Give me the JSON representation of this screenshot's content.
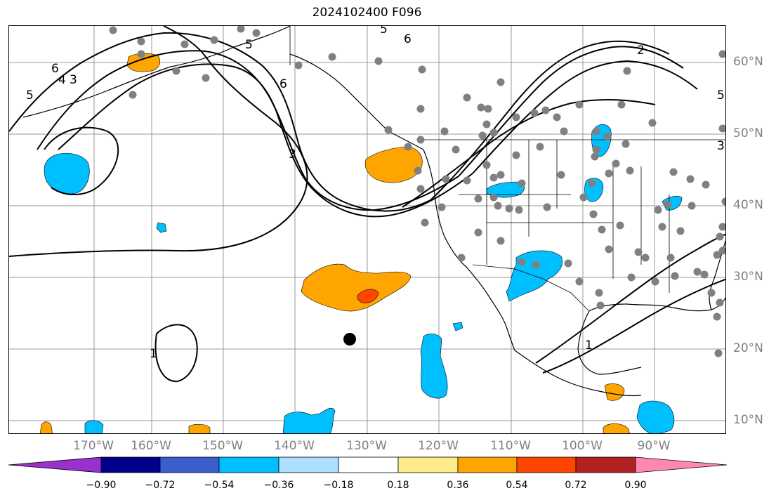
{
  "title": "2024102400 F096",
  "lon_labels": [
    "170°W",
    "160°W",
    "150°W",
    "140°W",
    "130°W",
    "120°W",
    "110°W",
    "100°W",
    "90°W"
  ],
  "lat_labels": [
    "60°N",
    "50°N",
    "40°N",
    "30°N",
    "20°N",
    "10°N"
  ],
  "contour_labels": [
    "6",
    "5",
    "4",
    "3",
    "5",
    "6",
    "3",
    "5",
    "6",
    "1",
    "1",
    "2",
    "3",
    "5"
  ],
  "colorbar": {
    "ticks": [
      "−0.90",
      "−0.72",
      "−0.54",
      "−0.36",
      "−0.18",
      "0.18",
      "0.36",
      "0.54",
      "0.72",
      "0.90"
    ],
    "colors": [
      "#9932CC",
      "#00008B",
      "#3A5FCD",
      "#00BFFF",
      "#ADDFFF",
      "#FFFFFF",
      "#FFEB8A",
      "#FFA500",
      "#FF4500",
      "#B22222",
      "#FF88B0"
    ]
  },
  "colors": {
    "grid": "#999999",
    "station": "#808080",
    "negative_fill": "#00BFFF",
    "positive_fill": "#FFA500",
    "strong_positive_fill": "#FF4500",
    "contour": "#000000"
  }
}
